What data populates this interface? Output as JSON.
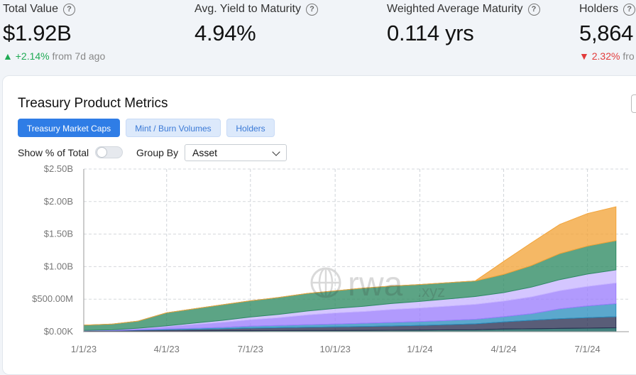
{
  "stats": [
    {
      "label": "Total Value",
      "value": "$1.92B",
      "change": "+2.14%",
      "change_dir": "up",
      "change_note": "from 7d ago"
    },
    {
      "label": "Avg. Yield to Maturity",
      "value": "4.94%"
    },
    {
      "label": "Weighted Average Maturity",
      "value": "0.114 yrs"
    },
    {
      "label": "Holders",
      "value": "5,864",
      "change": "2.32%",
      "change_dir": "down",
      "change_note": "fro"
    }
  ],
  "help_icon_glyph": "?",
  "card": {
    "title": "Treasury Product Metrics",
    "tabs": [
      {
        "label": "Treasury Market Caps",
        "active": true
      },
      {
        "label": "Mint / Burn Volumes",
        "active": false
      },
      {
        "label": "Holders",
        "active": false
      }
    ],
    "toggle_label": "Show % of Total",
    "toggle_on": false,
    "group_by_label": "Group By",
    "group_by_value": "Asset"
  },
  "watermark": {
    "text": "rwa",
    "suffix": ".xyz"
  },
  "colors": {
    "accent": "#2f7de6",
    "up": "#1faa54",
    "down": "#e23b3b"
  },
  "chart_data": {
    "type": "area",
    "stacked": true,
    "title": "",
    "xlabel": "",
    "ylabel": "",
    "y_ticks": [
      "$0.00K",
      "$500.00M",
      "$1.00B",
      "$1.50B",
      "$2.00B",
      "$2.50B"
    ],
    "x_ticks": [
      "1/1/23",
      "4/1/23",
      "7/1/23",
      "10/1/23",
      "1/1/24",
      "4/1/24",
      "7/1/24"
    ],
    "ylim": [
      0,
      2500000000
    ],
    "grid": true,
    "x": [
      "2023-01-01",
      "2023-02-01",
      "2023-03-01",
      "2023-04-01",
      "2023-05-01",
      "2023-06-01",
      "2023-07-01",
      "2023-08-01",
      "2023-09-01",
      "2023-10-01",
      "2023-11-01",
      "2023-12-01",
      "2024-01-01",
      "2024-02-01",
      "2024-03-01",
      "2024-04-01",
      "2024-05-01",
      "2024-06-01",
      "2024-07-01",
      "2024-08-01"
    ],
    "series": [
      {
        "color": "#0f5f5b",
        "values": [
          5,
          6,
          8,
          10,
          12,
          15,
          15,
          16,
          18,
          18,
          20,
          22,
          25,
          28,
          30,
          40,
          45,
          50,
          55,
          60
        ]
      },
      {
        "color": "#2a2f52",
        "values": [
          10,
          12,
          15,
          20,
          25,
          30,
          40,
          45,
          50,
          55,
          60,
          65,
          70,
          80,
          90,
          110,
          130,
          150,
          160,
          170
        ]
      },
      {
        "color": "#2d8fbf",
        "values": [
          0,
          0,
          5,
          10,
          15,
          20,
          30,
          35,
          40,
          45,
          50,
          55,
          60,
          65,
          70,
          80,
          100,
          150,
          180,
          200
        ]
      },
      {
        "color": "#9b7dfc",
        "values": [
          5,
          10,
          20,
          40,
          60,
          80,
          100,
          120,
          150,
          170,
          180,
          200,
          210,
          220,
          230,
          240,
          260,
          280,
          300,
          320
        ]
      },
      {
        "color": "#c8b6ff",
        "values": [
          0,
          0,
          5,
          10,
          20,
          30,
          40,
          50,
          60,
          70,
          80,
          90,
          100,
          110,
          120,
          130,
          150,
          170,
          190,
          200
        ]
      },
      {
        "color": "#2e8a63",
        "values": [
          80,
          90,
          110,
          200,
          220,
          240,
          250,
          260,
          270,
          270,
          280,
          270,
          260,
          250,
          240,
          280,
          330,
          400,
          430,
          450
        ]
      },
      {
        "color": "#f2a43a",
        "values": [
          0,
          0,
          0,
          0,
          0,
          0,
          0,
          0,
          0,
          0,
          0,
          0,
          0,
          0,
          0,
          200,
          350,
          450,
          500,
          520
        ]
      }
    ],
    "value_unit": "M"
  }
}
